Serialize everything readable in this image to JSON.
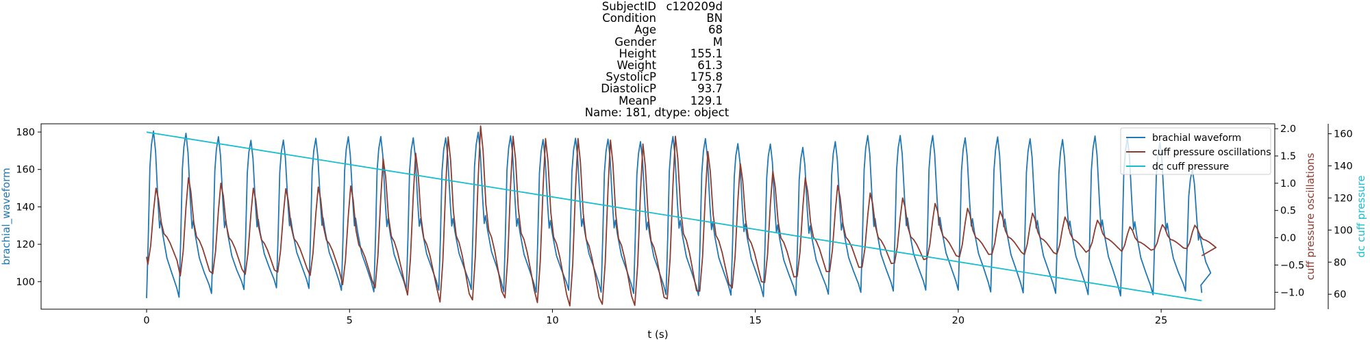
{
  "chart_data": {
    "type": "line",
    "title_rows": [
      {
        "key": "SubjectID",
        "value": "c120209d"
      },
      {
        "key": "Condition",
        "value": "BN"
      },
      {
        "key": "Age",
        "value": "68"
      },
      {
        "key": "Gender",
        "value": "M"
      },
      {
        "key": "Height",
        "value": "155.1"
      },
      {
        "key": "Weight",
        "value": "61.3"
      },
      {
        "key": "SystolicP",
        "value": "175.8"
      },
      {
        "key": "DiastolicP",
        "value": "93.7"
      },
      {
        "key": "MeanP",
        "value": "129.1"
      }
    ],
    "title_footer": "Name: 181, dtype: object",
    "xlabel": "t (s)",
    "xlim": [
      -2.6,
      27.8
    ],
    "xticks": [
      0,
      5,
      10,
      15,
      20,
      25
    ],
    "grid": false,
    "legend_position": "top-right",
    "colors": {
      "brachial": "#1f77b4",
      "cuff_osc": "#8c3b2e",
      "dc": "#17becf"
    },
    "axes": {
      "left": {
        "label": "brachial_waveform",
        "ylim": [
          85.3,
          184.4
        ],
        "ticks": [
          100,
          120,
          140,
          160,
          180
        ]
      },
      "right1": {
        "label": "cuff pressure oscillations",
        "ylim": [
          -1.31,
          2.09
        ],
        "ticks": [
          -1.0,
          -0.5,
          0.0,
          0.5,
          1.0,
          1.5,
          2.0
        ]
      },
      "right2": {
        "label": "dc cuff pressure",
        "ylim": [
          50.7,
          166.2
        ],
        "ticks": [
          60,
          80,
          100,
          120,
          140,
          160
        ]
      }
    },
    "series": [
      {
        "name": "brachial waveform",
        "axis": "left",
        "beat_times": [
          0.0,
          0.8,
          1.6,
          2.4,
          3.2,
          4.0,
          4.8,
          5.6,
          6.4,
          7.2,
          8.0,
          8.8,
          9.6,
          10.4,
          11.2,
          12.0,
          12.8,
          13.6,
          14.4,
          15.2,
          16.0,
          16.8,
          17.6,
          18.4,
          19.2,
          20.0,
          20.8,
          21.6,
          22.4,
          23.2,
          24.0,
          24.8,
          25.6
        ],
        "beat_peaks": [
          180.5,
          179.3,
          177.5,
          175.6,
          175.7,
          176.6,
          177.5,
          177.6,
          176.9,
          176.9,
          179.9,
          178.0,
          176.0,
          176.7,
          176.2,
          174.9,
          177.6,
          176.5,
          173.8,
          173.6,
          171.8,
          174.9,
          178.1,
          178.1,
          178.1,
          176.9,
          177.4,
          176.4,
          176.0,
          177.9,
          176.8,
          174.3,
          160.0
        ],
        "beat_troughs": [
          91.2,
          91.7,
          93.7,
          95.8,
          96.7,
          96.4,
          95.4,
          94.6,
          95.4,
          95.5,
          95.8,
          94.6,
          94.3,
          95.4,
          94.4,
          93.7,
          93.1,
          92.6,
          92.8,
          92.0,
          92.6,
          93.3,
          94.3,
          95.0,
          95.5,
          95.5,
          94.5,
          94.0,
          93.8,
          93.1,
          92.4,
          93.0,
          94.9
        ],
        "end": [
          26.0,
          94.0
        ]
      },
      {
        "name": "cuff pressure oscillations",
        "axis": "right1",
        "beat_peaks": [
          0.91,
          1.1,
          1.0,
          0.91,
          0.9,
          0.93,
          0.95,
          1.45,
          1.55,
          1.85,
          2.05,
          1.86,
          1.82,
          1.82,
          1.79,
          1.72,
          1.86,
          1.58,
          1.36,
          1.22,
          1.1,
          0.96,
          0.82,
          0.73,
          0.63,
          0.54,
          0.49,
          0.45,
          0.38,
          0.32,
          0.2,
          0.24,
          0.23
        ],
        "beat_troughs": [
          -0.49,
          -0.7,
          -0.66,
          -0.67,
          -0.63,
          -0.69,
          -0.86,
          -0.92,
          -1.05,
          -1.18,
          -1.14,
          -1.1,
          -1.19,
          -1.25,
          -1.22,
          -1.24,
          -1.12,
          -0.98,
          -0.92,
          -0.82,
          -0.71,
          -0.62,
          -0.54,
          -0.46,
          -0.38,
          -0.35,
          -0.3,
          -0.31,
          -0.3,
          -0.22,
          -0.25,
          -0.21,
          -0.2
        ],
        "end": [
          26.0,
          -0.33
        ]
      },
      {
        "name": "dc cuff pressure",
        "axis": "right2",
        "x": [
          0,
          26
        ],
        "y": [
          161.0,
          56.0
        ]
      }
    ]
  }
}
